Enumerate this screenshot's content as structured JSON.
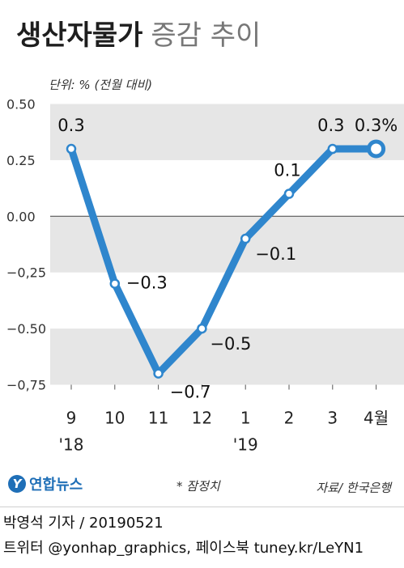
{
  "header": {
    "title_main": "생산자물가",
    "title_sub": "증감 추이",
    "unit": "단위: % (전월 대비)"
  },
  "chart_data": {
    "type": "line",
    "categories": [
      "9",
      "10",
      "11",
      "12",
      "1",
      "2",
      "3",
      "4월"
    ],
    "year_labels": [
      {
        "category_index": 0,
        "text": "'18"
      },
      {
        "category_index": 4,
        "text": "'19"
      }
    ],
    "values": [
      0.3,
      -0.3,
      -0.7,
      -0.5,
      -0.1,
      0.1,
      0.3,
      0.3
    ],
    "data_labels": [
      "0.3",
      "−0.3",
      "−0.7",
      "−0.5",
      "−0.1",
      "0.1",
      "0.3",
      "0.3%"
    ],
    "yticks": [
      "0.50",
      "0.25",
      "0.00",
      "−0,25",
      "−0.50",
      "−0,75"
    ],
    "ytick_values": [
      0.5,
      0.25,
      0.0,
      -0.25,
      -0.5,
      -0.75
    ],
    "ylim": [
      -0.75,
      0.5
    ],
    "line_color": "#2f86cd",
    "band_color": "#e6e6e6",
    "note": "* 잠정치",
    "last_point_provisional": true
  },
  "footer": {
    "logo_mark": "Y",
    "logo_text": "연합뉴스",
    "source": "자료/ 한국은행",
    "byline": "박영석 기자 / 20190521",
    "social": "트위터 @yonhap_graphics, 페이스북 tuney.kr/LeYN1"
  }
}
